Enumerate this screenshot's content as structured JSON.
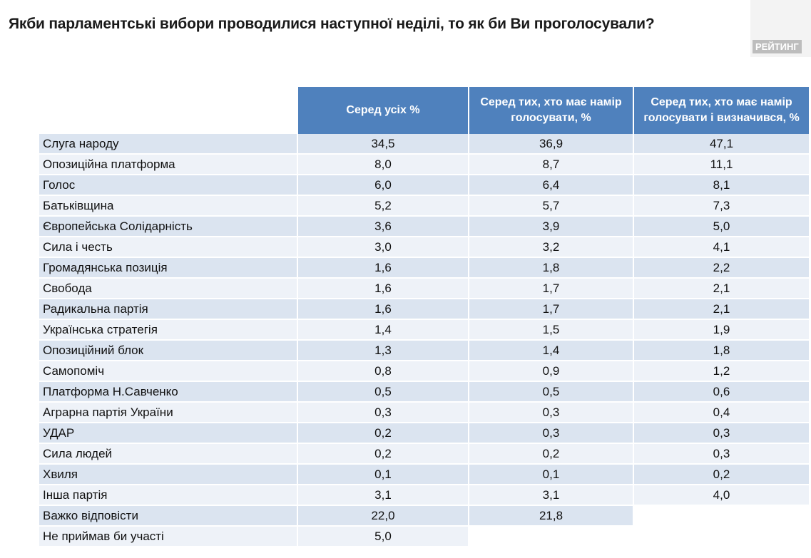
{
  "title": "Якби парламентські вибори проводилися наступної неділі, то як би Ви проголосували?",
  "logo": "РЕЙТИНГ",
  "headers": [
    "Серед усіх %",
    "Серед тих, хто має намір голосувати, %",
    "Серед тих, хто має намір голосувати і визначився, %"
  ],
  "rows": [
    {
      "party": "Слуга народу",
      "all": "34,5",
      "intend": "36,9",
      "decided": "47,1"
    },
    {
      "party": "Опозиційна платформа",
      "all": "8,0",
      "intend": "8,7",
      "decided": "11,1"
    },
    {
      "party": "Голос",
      "all": "6,0",
      "intend": "6,4",
      "decided": "8,1"
    },
    {
      "party": "Батьківщина",
      "all": "5,2",
      "intend": "5,7",
      "decided": "7,3"
    },
    {
      "party": "Європейська Солідарність",
      "all": "3,6",
      "intend": "3,9",
      "decided": "5,0"
    },
    {
      "party": "Сила і честь",
      "all": "3,0",
      "intend": "3,2",
      "decided": "4,1"
    },
    {
      "party": "Громадянська позиція",
      "all": "1,6",
      "intend": "1,8",
      "decided": "2,2"
    },
    {
      "party": "Свобода",
      "all": "1,6",
      "intend": "1,7",
      "decided": "2,1"
    },
    {
      "party": "Радикальна партія",
      "all": "1,6",
      "intend": "1,7",
      "decided": "2,1"
    },
    {
      "party": "Українська стратегія",
      "all": "1,4",
      "intend": "1,5",
      "decided": "1,9"
    },
    {
      "party": "Опозиційний блок",
      "all": "1,3",
      "intend": "1,4",
      "decided": "1,8"
    },
    {
      "party": "Самопоміч",
      "all": "0,8",
      "intend": "0,9",
      "decided": "1,2"
    },
    {
      "party": "Платформа Н.Савченко",
      "all": "0,5",
      "intend": "0,5",
      "decided": "0,6"
    },
    {
      "party": "Аграрна партія України",
      "all": "0,3",
      "intend": "0,3",
      "decided": "0,4"
    },
    {
      "party": "УДАР",
      "all": "0,2",
      "intend": "0,3",
      "decided": "0,3"
    },
    {
      "party": "Сила людей",
      "all": "0,2",
      "intend": "0,2",
      "decided": "0,3"
    },
    {
      "party": "Хвиля",
      "all": "0,1",
      "intend": "0,1",
      "decided": "0,2"
    },
    {
      "party": "Інша партія",
      "all": "3,1",
      "intend": "3,1",
      "decided": "4,0"
    },
    {
      "party": "Важко відповісти",
      "all": "22,0",
      "intend": "21,8",
      "decided": null
    },
    {
      "party": "Не приймав би участі",
      "all": "5,0",
      "intend": null,
      "decided": null
    }
  ]
}
